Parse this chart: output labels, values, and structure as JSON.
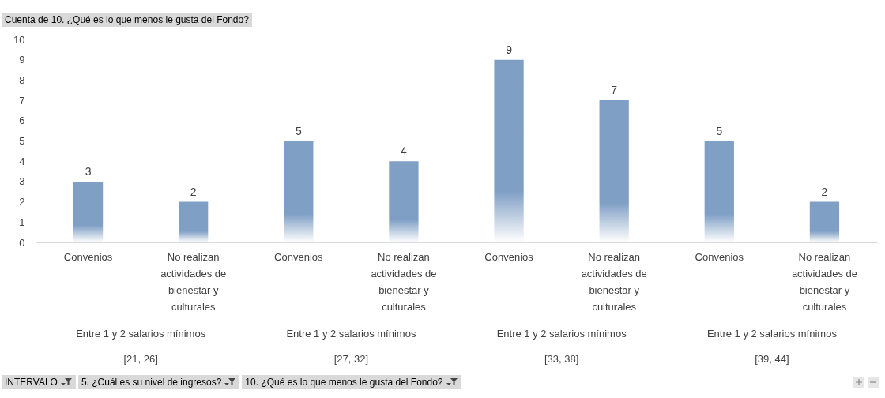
{
  "chart_data": {
    "type": "bar",
    "categories": [
      "Convenios",
      "No realizan actividades de bienestar y culturales",
      "Convenios",
      "No realizan actividades de bienestar y culturales",
      "Convenios",
      "No realizan actividades de bienestar y culturales",
      "Convenios",
      "No realizan actividades de bienestar y culturales"
    ],
    "values": [
      3,
      2,
      5,
      4,
      9,
      7,
      5,
      2
    ],
    "color": "#7f9fc5",
    "ylim": [
      0,
      10
    ],
    "yticks": [
      0,
      1,
      2,
      3,
      4,
      5,
      6,
      7,
      8,
      9,
      10
    ],
    "grid": false,
    "data_labels": true,
    "annotations": [
      "Cuenta de 10. ¿Qué es lo que menos le gusta del Fondo?",
      "Entre 1 y 2 salarios mínimos",
      "Entre 1 y 2 salarios mínimos",
      "Entre 1 y 2 salarios mínimos",
      "Entre 1 y 2 salarios mínimos",
      "[21, 26]",
      "[27, 32]",
      "[33, 38]",
      "[39, 44]",
      "INTERVALO",
      "5. ¿Cuál es su nivel de ingresos?",
      "10. ¿Qué es lo que menos le gusta del Fondo?"
    ]
  }
}
